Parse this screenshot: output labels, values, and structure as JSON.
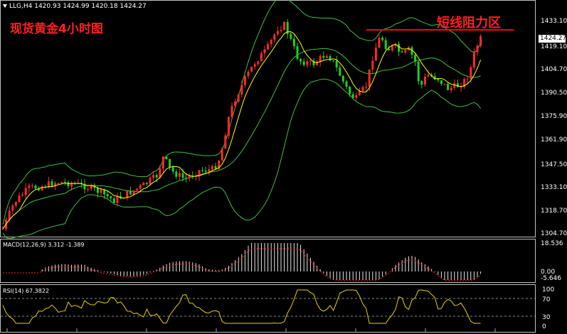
{
  "header": {
    "symbol": "LLG,H4",
    "open": "1420.93",
    "high": "1424.99",
    "low": "1420.18",
    "close": "1424.27"
  },
  "annotations": {
    "title": "现货黄金4小时图",
    "resistance": "短线阻力区"
  },
  "price_axis": {
    "ticks": [
      "1433.10",
      "1419.10",
      "1404.70",
      "1390.50",
      "1375.90",
      "1361.90",
      "1347.50",
      "1333.10",
      "1318.70",
      "1304.70"
    ],
    "current": "1424.27"
  },
  "macd": {
    "label": "MACD(12,26,9) 3.312 -1.389",
    "ticks": [
      "18.536",
      "0.00",
      "-5.646"
    ]
  },
  "rsi": {
    "label": "RSI(14) 67.3822",
    "ticks": [
      "100",
      "70",
      "30",
      "0"
    ]
  },
  "colors": {
    "bull": "#ff2a2a",
    "bear": "#1fcf1f",
    "band": "#3fbf3f",
    "ma": "#ffff00",
    "resistance_line": "#ff0000",
    "macd_signal": "#ff2020"
  }
}
